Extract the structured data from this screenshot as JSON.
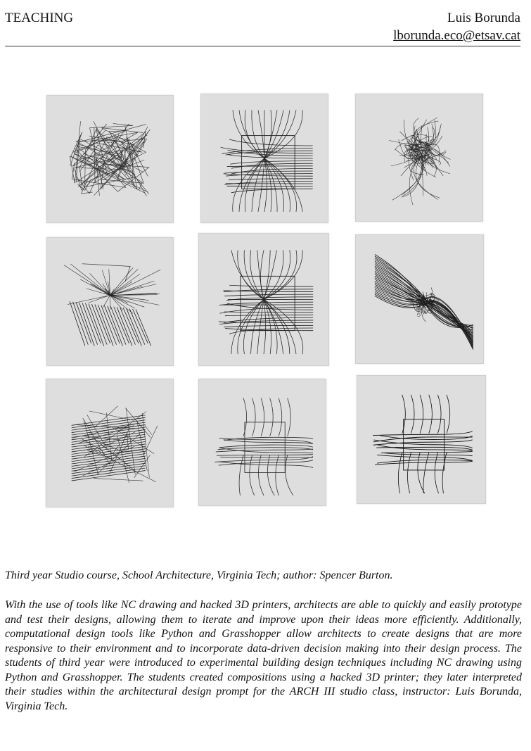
{
  "header": {
    "section_title": "TEACHING",
    "author_name": "Luis Borunda",
    "author_email": "lborunda.eco@etsav.cat"
  },
  "gallery": {
    "plates": [
      {
        "kind": "scribble",
        "shade": "#333"
      },
      {
        "kind": "frame-lines",
        "shade": "#222"
      },
      {
        "kind": "cluster",
        "shade": "#2a2a2a"
      },
      {
        "kind": "fan",
        "shade": "#222"
      },
      {
        "kind": "frame-lines",
        "shade": "#222"
      },
      {
        "kind": "swirl",
        "shade": "#1e1e1e"
      },
      {
        "kind": "hatch-scribble",
        "shade": "#222"
      },
      {
        "kind": "frame-wavy",
        "shade": "#333"
      },
      {
        "kind": "frame-wavy",
        "shade": "#111"
      }
    ]
  },
  "caption": "Third year Studio course, School Architecture, Virginia Tech; author: Spencer Burton.",
  "description": "With the use of tools like NC drawing and hacked 3D printers, architects are able to quickly and easily prototype and test their designs, allowing them to iterate and improve upon their ideas more efficiently. Additionally, computational design tools like Python and Grasshopper allow architects to create designs that are more responsive to their environment and to incorporate data-driven decision making into their design process. The students of third year were introduced to experimental building design techniques including NC drawing using Python and Grasshopper. The students created compositions using a hacked 3D printer; they later interpreted their studies within the architectural design prompt for the ARCH III studio class, instructor: Luis Borunda, Virginia Tech."
}
